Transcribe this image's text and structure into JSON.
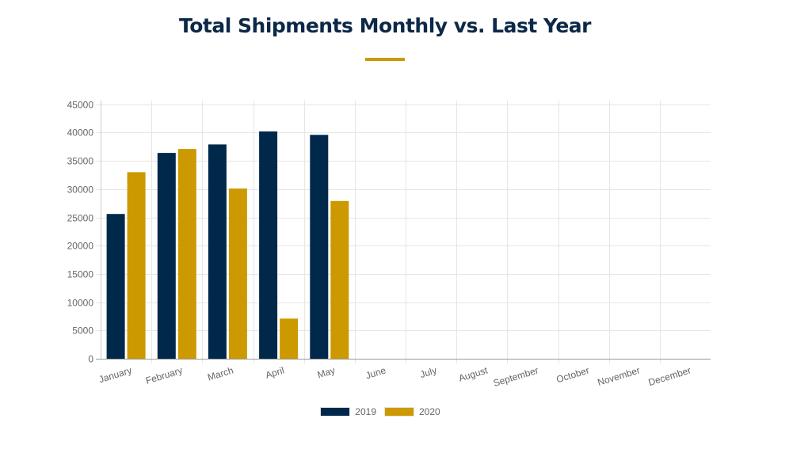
{
  "header": {
    "title": "Total Shipments Monthly vs. Last Year"
  },
  "colors": {
    "title": "#0d2847",
    "accent_rule": "#cc9900",
    "series_2019": "#00284b",
    "series_2020": "#cc9900",
    "grid": "#e6e6e6",
    "axis": "#999999",
    "tick_text": "#666666"
  },
  "chart_data": {
    "type": "bar",
    "title": "Total Shipments Monthly vs. Last Year",
    "xlabel": "",
    "ylabel": "",
    "categories": [
      "January",
      "February",
      "March",
      "April",
      "May",
      "June",
      "July",
      "August",
      "September",
      "October",
      "November",
      "December"
    ],
    "series": [
      {
        "name": "2019",
        "color": "#00284b",
        "values": [
          25600,
          36400,
          37900,
          40200,
          39600,
          null,
          null,
          null,
          null,
          null,
          null,
          null
        ]
      },
      {
        "name": "2020",
        "color": "#cc9900",
        "values": [
          33000,
          37100,
          30100,
          7100,
          27900,
          null,
          null,
          null,
          null,
          null,
          null,
          null
        ]
      }
    ],
    "ylim": [
      0,
      45000
    ],
    "yticks": [
      0,
      5000,
      10000,
      15000,
      20000,
      25000,
      30000,
      35000,
      40000,
      45000
    ],
    "grid": true,
    "legend_position": "bottom"
  }
}
